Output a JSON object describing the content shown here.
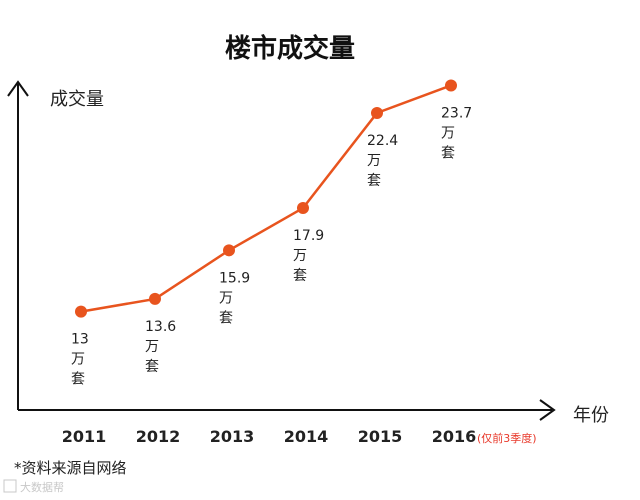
{
  "chart_data": {
    "type": "line",
    "title": "楼市成交量",
    "ylabel": "成交量",
    "xlabel": "年份",
    "categories": [
      "2011",
      "2012",
      "2013",
      "2014",
      "2015",
      "2016"
    ],
    "category_note": {
      "index": 5,
      "text": "(仅前3季度)"
    },
    "values": [
      13,
      13.6,
      15.9,
      17.9,
      22.4,
      23.7
    ],
    "value_labels": [
      "13",
      "13.6",
      "15.9",
      "17.9",
      "22.4",
      "23.7"
    ],
    "unit_lines": [
      "万",
      "套"
    ],
    "ylim": [
      10,
      25
    ],
    "grid": false,
    "line_color": "#e8541e",
    "source_note": "*资料来源自网络",
    "watermark": "大数据帮"
  }
}
